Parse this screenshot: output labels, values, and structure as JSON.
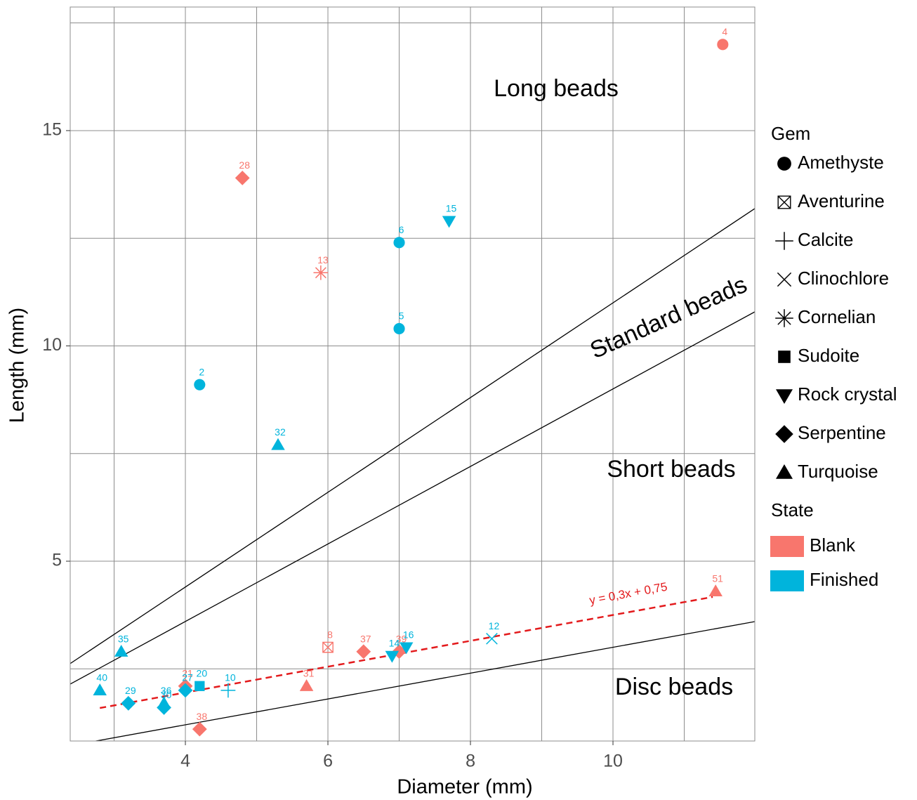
{
  "chart_data": {
    "type": "scatter",
    "xlabel": "Diameter (mm)",
    "ylabel": "Length (mm)",
    "xlim": [
      2.384,
      11.99
    ],
    "ylim": [
      0.824,
      17.87
    ],
    "xticks": [
      4,
      6,
      8,
      10
    ],
    "yticks": [
      5,
      10,
      15
    ],
    "xticks_minor": [
      3,
      5,
      7,
      9,
      11
    ],
    "yticks_minor": [
      2.5,
      7.5,
      12.5,
      17.5
    ],
    "grid": true,
    "annotations": [
      "Long beads",
      "Standard beads",
      "Short beads",
      "Disc beads"
    ],
    "reference_lines": [
      {
        "slope": 1.1,
        "intercept": 0
      },
      {
        "slope": 0.9,
        "intercept": 0
      },
      {
        "slope": 0.3,
        "intercept": 0
      }
    ],
    "trend_line": {
      "label": "y = 0,3x + 0,75",
      "slope": 0.3,
      "intercept": 0.75,
      "xrange": [
        2.8,
        11.4
      ],
      "color": "#e31a1c"
    },
    "series": [
      {
        "name": "Blank",
        "color": "#f8766d",
        "points": [
          {
            "label": "4",
            "x": 11.54,
            "y": 17.0,
            "marker": "circle"
          },
          {
            "label": "28",
            "x": 4.8,
            "y": 13.9,
            "marker": "diamond"
          },
          {
            "label": "13",
            "x": 5.9,
            "y": 11.7,
            "marker": "asterisk"
          },
          {
            "label": "51",
            "x": 11.44,
            "y": 4.3,
            "marker": "triangle"
          },
          {
            "label": "8",
            "x": 6.0,
            "y": 3.0,
            "marker": "box-x"
          },
          {
            "label": "37",
            "x": 6.5,
            "y": 2.9,
            "marker": "diamond"
          },
          {
            "label": "39",
            "x": 7.0,
            "y": 2.9,
            "marker": "diamond"
          },
          {
            "label": "31",
            "x": 5.7,
            "y": 2.1,
            "marker": "triangle"
          },
          {
            "label": "21",
            "x": 4.0,
            "y": 2.1,
            "marker": "diamond"
          },
          {
            "label": "38",
            "x": 4.2,
            "y": 1.1,
            "marker": "diamond"
          }
        ]
      },
      {
        "name": "Finished",
        "color": "#00b4dc",
        "points": [
          {
            "label": "15",
            "x": 7.7,
            "y": 12.9,
            "marker": "triangle-down"
          },
          {
            "label": "6",
            "x": 7.0,
            "y": 12.4,
            "marker": "circle"
          },
          {
            "label": "5",
            "x": 7.0,
            "y": 10.4,
            "marker": "circle"
          },
          {
            "label": "2",
            "x": 4.2,
            "y": 9.1,
            "marker": "circle"
          },
          {
            "label": "32",
            "x": 5.3,
            "y": 7.7,
            "marker": "triangle"
          },
          {
            "label": "12",
            "x": 8.3,
            "y": 3.2,
            "marker": "cross"
          },
          {
            "label": "16",
            "x": 7.1,
            "y": 3.0,
            "marker": "triangle-down"
          },
          {
            "label": "14",
            "x": 6.9,
            "y": 2.8,
            "marker": "triangle-down"
          },
          {
            "label": "35",
            "x": 3.1,
            "y": 2.9,
            "marker": "triangle"
          },
          {
            "label": "20",
            "x": 4.2,
            "y": 2.1,
            "marker": "square"
          },
          {
            "label": "10",
            "x": 4.6,
            "y": 2.0,
            "marker": "plus"
          },
          {
            "label": "40",
            "x": 2.8,
            "y": 2.0,
            "marker": "triangle"
          },
          {
            "label": "29",
            "x": 3.2,
            "y": 1.7,
            "marker": "diamond"
          },
          {
            "label": "36",
            "x": 3.7,
            "y": 1.7,
            "marker": "triangle"
          },
          {
            "label": "30",
            "x": 3.7,
            "y": 1.6,
            "marker": "diamond"
          },
          {
            "label": "27",
            "x": 4.0,
            "y": 2.0,
            "marker": "diamond"
          }
        ]
      }
    ],
    "legend": {
      "gem_title": "Gem",
      "gems": [
        {
          "name": "Amethyste",
          "marker": "circle"
        },
        {
          "name": "Aventurine",
          "marker": "box-x"
        },
        {
          "name": "Calcite",
          "marker": "plus"
        },
        {
          "name": "Clinochlore",
          "marker": "cross"
        },
        {
          "name": "Cornelian",
          "marker": "asterisk"
        },
        {
          "name": "Sudoite",
          "marker": "square"
        },
        {
          "name": "Rock crystal",
          "marker": "triangle-down"
        },
        {
          "name": "Serpentine",
          "marker": "diamond"
        },
        {
          "name": "Turquoise",
          "marker": "triangle"
        }
      ],
      "state_title": "State"
    }
  }
}
